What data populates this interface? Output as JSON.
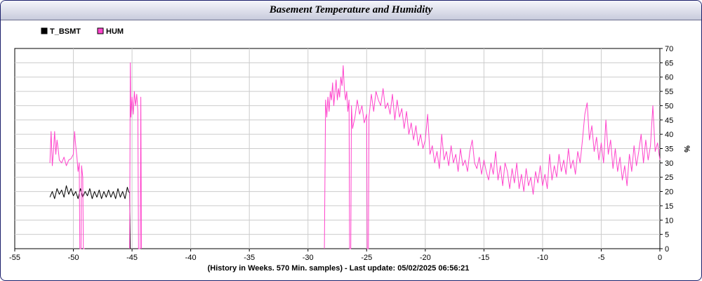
{
  "window": {
    "title": "Basement Temperature and Humidity"
  },
  "footer": {
    "text": "(History in Weeks. 570 Min. samples) - Last update: 05/02/2025 06:56:21"
  },
  "chart_data": {
    "type": "line",
    "title": "Basement Temperature and Humidity",
    "xlabel": "",
    "ylabel": "%",
    "xlim": [
      -55,
      0
    ],
    "ylim": [
      0,
      70
    ],
    "x_ticks": [
      -55,
      -50,
      -45,
      -40,
      -35,
      -30,
      -25,
      -20,
      -15,
      -10,
      -5,
      0
    ],
    "y_ticks": [
      0,
      5,
      10,
      15,
      20,
      25,
      30,
      35,
      40,
      45,
      50,
      55,
      60,
      65,
      70
    ],
    "grid": true,
    "legend": "top-left",
    "series": [
      {
        "name": "T_BSMT",
        "color": "#000000",
        "points": [
          [
            -52,
            18
          ],
          [
            -51.8,
            20
          ],
          [
            -51.6,
            17.5
          ],
          [
            -51.4,
            21
          ],
          [
            -51.2,
            19
          ],
          [
            -51.0,
            20.5
          ],
          [
            -50.8,
            18
          ],
          [
            -50.6,
            22
          ],
          [
            -50.4,
            19
          ],
          [
            -50.2,
            21
          ],
          [
            -50.0,
            18.5
          ],
          [
            -49.8,
            20
          ],
          [
            -49.6,
            17.5
          ],
          [
            -49.4,
            21
          ],
          [
            -49.2,
            18
          ],
          [
            -49.0,
            20
          ],
          [
            -48.8,
            18.5
          ],
          [
            -48.6,
            21
          ],
          [
            -48.4,
            17.5
          ],
          [
            -48.2,
            20
          ],
          [
            -48.0,
            18
          ],
          [
            -47.8,
            20.5
          ],
          [
            -47.6,
            17.5
          ],
          [
            -47.4,
            20
          ],
          [
            -47.2,
            18
          ],
          [
            -47.0,
            20.5
          ],
          [
            -46.8,
            18
          ],
          [
            -46.6,
            20
          ],
          [
            -46.4,
            17.5
          ],
          [
            -46.2,
            21
          ],
          [
            -46.0,
            18
          ],
          [
            -45.8,
            20
          ],
          [
            -45.6,
            17.5
          ],
          [
            -45.4,
            21.5
          ],
          [
            -45.3,
            20
          ],
          [
            -45.2,
            19.5
          ],
          [
            -45.15,
            0
          ]
        ]
      },
      {
        "name": "HUM",
        "color": "#ff44cc",
        "segments": [
          [
            [
              -52.0,
              30
            ],
            [
              -51.9,
              41
            ],
            [
              -51.8,
              29
            ],
            [
              -51.7,
              34
            ],
            [
              -51.6,
              41
            ],
            [
              -51.5,
              33
            ],
            [
              -51.4,
              38
            ],
            [
              -51.3,
              35
            ],
            [
              -51.2,
              31
            ],
            [
              -51.0,
              30
            ],
            [
              -50.8,
              32
            ],
            [
              -50.6,
              29
            ],
            [
              -50.4,
              31
            ],
            [
              -50.2,
              31.5
            ],
            [
              -50.0,
              33
            ],
            [
              -49.9,
              41
            ],
            [
              -49.8,
              36
            ],
            [
              -49.7,
              32
            ],
            [
              -49.6,
              27
            ],
            [
              -49.5,
              30
            ],
            [
              -49.45,
              0
            ],
            [
              -49.35,
              0
            ],
            [
              -49.3,
              29
            ],
            [
              -49.2,
              25
            ],
            [
              -49.15,
              0
            ],
            [
              -49.05,
              0
            ]
          ],
          [
            [
              -45.2,
              0
            ],
            [
              -45.15,
              65
            ],
            [
              -45.1,
              46
            ],
            [
              -45.0,
              53
            ],
            [
              -44.9,
              47
            ],
            [
              -44.8,
              55
            ],
            [
              -44.7,
              50
            ],
            [
              -44.6,
              54
            ],
            [
              -44.5,
              48
            ],
            [
              -44.45,
              0
            ],
            [
              -44.3,
              0
            ],
            [
              -44.25,
              53
            ],
            [
              -44.2,
              0
            ]
          ],
          [
            [
              -28.6,
              0
            ],
            [
              -28.5,
              52
            ],
            [
              -28.4,
              46
            ],
            [
              -28.3,
              53
            ],
            [
              -28.2,
              48
            ],
            [
              -28.1,
              55
            ],
            [
              -28.0,
              52
            ],
            [
              -27.9,
              58
            ],
            [
              -27.8,
              50
            ],
            [
              -27.7,
              55
            ],
            [
              -27.6,
              59
            ],
            [
              -27.5,
              52
            ],
            [
              -27.4,
              56
            ],
            [
              -27.3,
              53
            ],
            [
              -27.2,
              60
            ],
            [
              -27.1,
              57
            ],
            [
              -27.0,
              64
            ],
            [
              -26.9,
              56
            ],
            [
              -26.8,
              52
            ],
            [
              -26.7,
              55
            ],
            [
              -26.6,
              48
            ],
            [
              -26.5,
              52
            ],
            [
              -26.45,
              0
            ],
            [
              -26.35,
              0
            ],
            [
              -26.3,
              50
            ],
            [
              -26.2,
              42
            ],
            [
              -26.0,
              46
            ],
            [
              -25.8,
              52
            ],
            [
              -25.6,
              47
            ],
            [
              -25.4,
              50
            ],
            [
              -25.2,
              44
            ],
            [
              -25.0,
              47
            ],
            [
              -24.95,
              0
            ],
            [
              -24.85,
              0
            ],
            [
              -24.8,
              46
            ],
            [
              -24.6,
              54
            ],
            [
              -24.4,
              48
            ],
            [
              -24.2,
              55
            ],
            [
              -24.0,
              52
            ],
            [
              -23.8,
              50
            ],
            [
              -23.6,
              56
            ],
            [
              -23.4,
              49
            ],
            [
              -23.2,
              51
            ],
            [
              -23.0,
              47
            ],
            [
              -22.8,
              54
            ],
            [
              -22.6,
              45
            ],
            [
              -22.4,
              52
            ],
            [
              -22.2,
              46
            ],
            [
              -22.0,
              49
            ],
            [
              -21.8,
              42
            ],
            [
              -21.6,
              48
            ],
            [
              -21.4,
              40
            ],
            [
              -21.2,
              44
            ],
            [
              -21.0,
              38
            ],
            [
              -20.8,
              43
            ],
            [
              -20.6,
              36
            ],
            [
              -20.4,
              40
            ],
            [
              -20.2,
              35
            ],
            [
              -20.0,
              38
            ],
            [
              -19.8,
              47
            ],
            [
              -19.6,
              33
            ],
            [
              -19.4,
              36
            ],
            [
              -19.2,
              30
            ],
            [
              -19.0,
              34
            ],
            [
              -18.8,
              28
            ],
            [
              -18.6,
              40
            ],
            [
              -18.4,
              31
            ],
            [
              -18.2,
              34
            ],
            [
              -18.0,
              29
            ],
            [
              -17.8,
              36
            ],
            [
              -17.6,
              30
            ],
            [
              -17.4,
              33
            ],
            [
              -17.2,
              27
            ],
            [
              -17.0,
              35
            ],
            [
              -16.8,
              29
            ],
            [
              -16.6,
              31
            ],
            [
              -16.4,
              27
            ],
            [
              -16.2,
              34
            ],
            [
              -16.0,
              38
            ],
            [
              -15.8,
              30
            ],
            [
              -15.6,
              28
            ],
            [
              -15.4,
              32
            ],
            [
              -15.2,
              26
            ],
            [
              -15.0,
              31
            ],
            [
              -14.8,
              27
            ],
            [
              -14.6,
              24
            ],
            [
              -14.4,
              30
            ],
            [
              -14.2,
              26
            ],
            [
              -14.0,
              34
            ],
            [
              -13.8,
              24
            ],
            [
              -13.6,
              29
            ],
            [
              -13.4,
              22
            ],
            [
              -13.2,
              30
            ],
            [
              -13.0,
              27
            ],
            [
              -12.8,
              21
            ],
            [
              -12.6,
              28
            ],
            [
              -12.4,
              23
            ],
            [
              -12.2,
              30
            ],
            [
              -12.0,
              21
            ],
            [
              -11.8,
              26
            ],
            [
              -11.6,
              20
            ],
            [
              -11.4,
              28
            ],
            [
              -11.2,
              22
            ],
            [
              -11.0,
              25
            ],
            [
              -10.8,
              19
            ],
            [
              -10.6,
              27
            ],
            [
              -10.4,
              23
            ],
            [
              -10.2,
              29
            ],
            [
              -10.0,
              22
            ],
            [
              -9.8,
              26
            ],
            [
              -9.6,
              21
            ],
            [
              -9.4,
              33
            ],
            [
              -9.2,
              24
            ],
            [
              -9.0,
              29
            ],
            [
              -8.8,
              25
            ],
            [
              -8.6,
              33
            ],
            [
              -8.4,
              27
            ],
            [
              -8.2,
              31
            ],
            [
              -8.0,
              26
            ],
            [
              -7.8,
              35
            ],
            [
              -7.6,
              28
            ],
            [
              -7.4,
              31
            ],
            [
              -7.2,
              26
            ],
            [
              -7.0,
              34
            ],
            [
              -6.8,
              30
            ],
            [
              -6.6,
              38
            ],
            [
              -6.4,
              47
            ],
            [
              -6.2,
              51
            ],
            [
              -6.0,
              38
            ],
            [
              -5.8,
              43
            ],
            [
              -5.6,
              34
            ],
            [
              -5.4,
              39
            ],
            [
              -5.2,
              31
            ],
            [
              -5.0,
              37
            ],
            [
              -4.8,
              30
            ],
            [
              -4.6,
              45
            ],
            [
              -4.4,
              33
            ],
            [
              -4.2,
              38
            ],
            [
              -4.0,
              28
            ],
            [
              -3.8,
              35
            ],
            [
              -3.6,
              27
            ],
            [
              -3.4,
              32
            ],
            [
              -3.2,
              24
            ],
            [
              -3.0,
              29
            ],
            [
              -2.8,
              22
            ],
            [
              -2.6,
              33
            ],
            [
              -2.4,
              27
            ],
            [
              -2.2,
              36
            ],
            [
              -2.0,
              29
            ],
            [
              -1.8,
              34
            ],
            [
              -1.6,
              40
            ],
            [
              -1.4,
              30
            ],
            [
              -1.2,
              38
            ],
            [
              -1.0,
              31
            ],
            [
              -0.8,
              36
            ],
            [
              -0.6,
              50
            ],
            [
              -0.4,
              34
            ],
            [
              -0.2,
              37
            ],
            [
              0.0,
              31
            ]
          ]
        ]
      }
    ]
  }
}
